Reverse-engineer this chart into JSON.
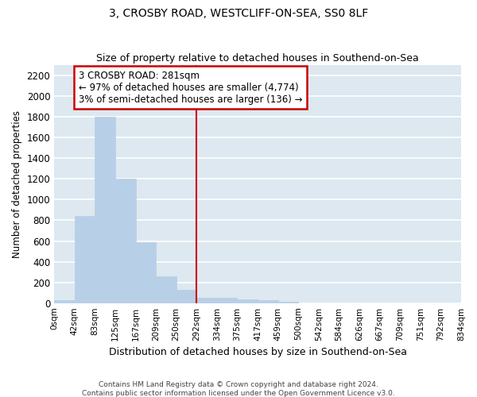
{
  "title": "3, CROSBY ROAD, WESTCLIFF-ON-SEA, SS0 8LF",
  "subtitle": "Size of property relative to detached houses in Southend-on-Sea",
  "xlabel": "Distribution of detached houses by size in Southend-on-Sea",
  "ylabel": "Number of detached properties",
  "bar_values": [
    25,
    845,
    1800,
    1200,
    590,
    260,
    125,
    50,
    50,
    35,
    25,
    15,
    0,
    0,
    0,
    0,
    0,
    0,
    0,
    0
  ],
  "bin_labels": [
    "0sqm",
    "42sqm",
    "83sqm",
    "125sqm",
    "167sqm",
    "209sqm",
    "250sqm",
    "292sqm",
    "334sqm",
    "375sqm",
    "417sqm",
    "459sqm",
    "500sqm",
    "542sqm",
    "584sqm",
    "626sqm",
    "667sqm",
    "709sqm",
    "751sqm",
    "792sqm",
    "834sqm"
  ],
  "bar_color": "#b8cfe8",
  "bar_edge_color": "#b8cfe8",
  "vline_x": 7,
  "vline_color": "#cc0000",
  "annotation_box_text": "3 CROSBY ROAD: 281sqm\n← 97% of detached houses are smaller (4,774)\n3% of semi-detached houses are larger (136) →",
  "annotation_box_color": "#cc0000",
  "annotation_box_fill": "#ffffff",
  "ylim": [
    0,
    2300
  ],
  "yticks": [
    0,
    200,
    400,
    600,
    800,
    1000,
    1200,
    1400,
    1600,
    1800,
    2000,
    2200
  ],
  "background_color": "#dde8f0",
  "grid_color": "#ffffff",
  "footer_line1": "Contains HM Land Registry data © Crown copyright and database right 2024.",
  "footer_line2": "Contains public sector information licensed under the Open Government Licence v3.0."
}
